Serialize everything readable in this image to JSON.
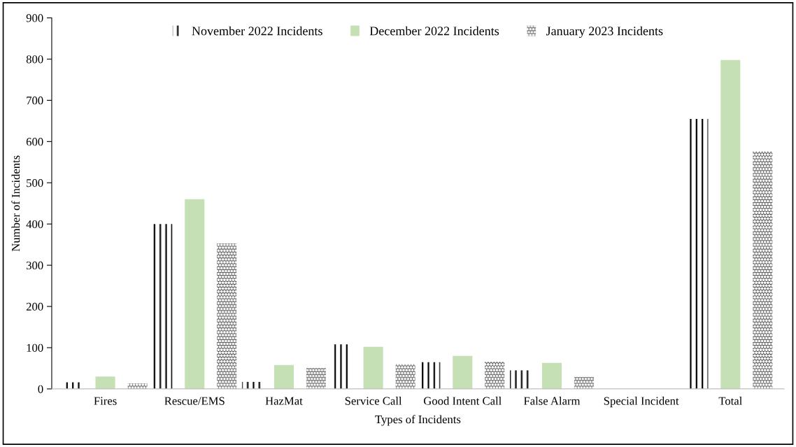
{
  "chart_data": {
    "type": "bar",
    "xlabel": "Types of Incidents",
    "ylabel": "Number of Incidents",
    "categories": [
      "Fires",
      "Rescue/EMS",
      "HazMat",
      "Service Call",
      "Good Intent Call",
      "False Alarm",
      "Special Incident",
      "Total"
    ],
    "series": [
      {
        "name": "November 2022 Incidents",
        "color": "#000000",
        "values": [
          16,
          400,
          17,
          108,
          65,
          45,
          0,
          655
        ]
      },
      {
        "name": "December 2022 Incidents",
        "color": "#c5e0b4",
        "values": [
          30,
          460,
          58,
          102,
          80,
          63,
          0,
          798
        ]
      },
      {
        "name": "January 2023 Incidents",
        "color": "#333333",
        "values": [
          13,
          353,
          51,
          60,
          66,
          29,
          0,
          577
        ]
      }
    ],
    "ylim": [
      0,
      900
    ],
    "yticks": [
      0,
      100,
      200,
      300,
      400,
      500,
      600,
      700,
      800,
      900
    ],
    "grid": false,
    "legend": "top"
  }
}
